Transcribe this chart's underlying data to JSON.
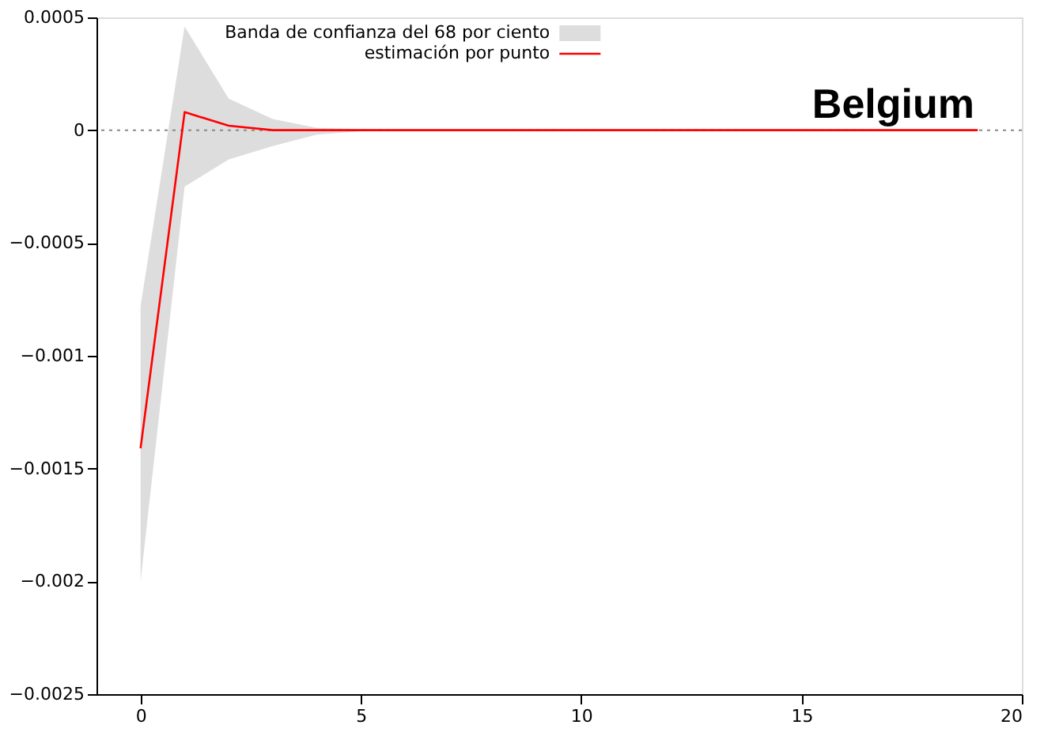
{
  "chart_data": {
    "type": "line",
    "x": [
      0,
      1,
      2,
      3,
      4,
      5,
      6,
      7,
      8,
      9,
      10,
      11,
      12,
      13,
      14,
      15,
      16,
      17,
      18,
      19
    ],
    "series": [
      {
        "name": "estimación por punto",
        "color": "#ff0000",
        "values": [
          -0.00141,
          8e-05,
          2e-05,
          0,
          0,
          0,
          0,
          0,
          0,
          0,
          0,
          0,
          0,
          0,
          0,
          0,
          0,
          0,
          0,
          0
        ],
        "lower": [
          -0.002,
          -0.00025,
          -0.00013,
          -7e-05,
          -2e-05,
          -5e-06,
          0,
          0,
          0,
          0,
          0,
          0,
          0,
          0,
          0,
          0,
          0,
          0,
          0,
          0
        ],
        "upper": [
          -0.00078,
          0.00046,
          0.00014,
          5e-05,
          1e-05,
          5e-06,
          0,
          0,
          0,
          0,
          0,
          0,
          0,
          0,
          0,
          0,
          0,
          0,
          0,
          0
        ]
      }
    ],
    "xlim": [
      -1,
      20
    ],
    "xticks": [
      0,
      5,
      10,
      15,
      20
    ],
    "ylim": [
      -0.0025,
      0.0005
    ],
    "yticks": [
      -0.0025,
      -0.002,
      -0.0015,
      -0.001,
      -0.0005,
      0,
      0.0005
    ],
    "ref_lines": [
      {
        "axis": "y",
        "value": 0,
        "color": "#888888",
        "line_style": "dotted"
      }
    ],
    "annotations": [
      "Banda de confianza del 68 por ciento",
      "Belgium"
    ],
    "legend": "top",
    "grid": false,
    "marker": "none",
    "line_style": "solid"
  }
}
